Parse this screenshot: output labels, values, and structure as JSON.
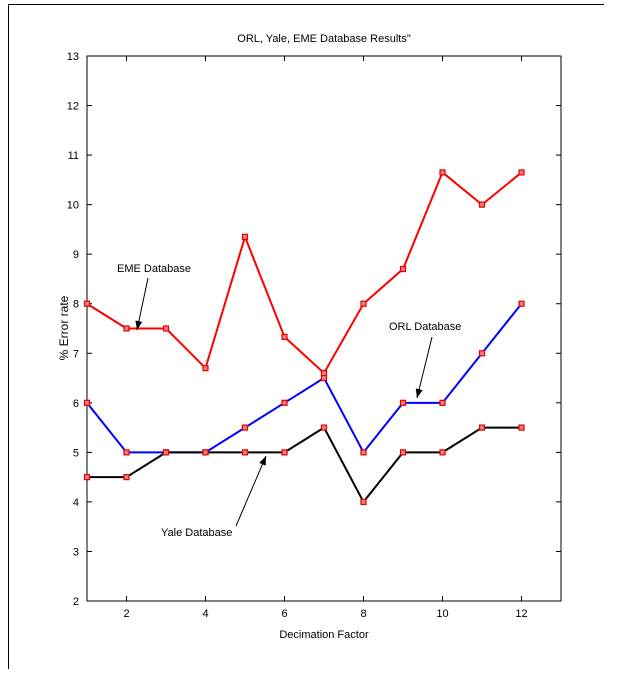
{
  "chart_data": {
    "type": "line",
    "title": "ORL, Yale, EME Database Results\"",
    "xlabel": "Decimation Factor",
    "ylabel": "% Error rate",
    "xlim": [
      1,
      13
    ],
    "ylim": [
      2,
      13
    ],
    "xticks": [
      2,
      4,
      6,
      8,
      10,
      12
    ],
    "yticks": [
      2,
      3,
      4,
      5,
      6,
      7,
      8,
      9,
      10,
      11,
      12,
      13
    ],
    "grid": false,
    "x": [
      1,
      2,
      3,
      4,
      5,
      6,
      7,
      8,
      9,
      10,
      11,
      12
    ],
    "series": [
      {
        "name": "EME Database",
        "color": "#ff0000",
        "values": [
          8.0,
          7.5,
          7.5,
          6.7,
          9.35,
          7.33,
          6.6,
          8.0,
          8.7,
          10.65,
          10.0,
          10.65
        ]
      },
      {
        "name": "ORL Database",
        "color": "#0000ff",
        "values": [
          6.0,
          5.0,
          5.0,
          5.0,
          5.5,
          6.0,
          6.5,
          5.0,
          6.0,
          6.0,
          7.0,
          8.0
        ]
      },
      {
        "name": "Yale Database",
        "color": "#000000",
        "values": [
          4.5,
          4.5,
          5.0,
          5.0,
          5.0,
          5.0,
          5.5,
          4.0,
          5.0,
          5.0,
          5.5,
          5.5
        ]
      }
    ],
    "annotations": [
      {
        "text": "EME Database",
        "series": 0,
        "x": 2.3
      },
      {
        "text": "ORL Database",
        "series": 1,
        "x": 9.3
      },
      {
        "text": "Yale Database",
        "series": 2,
        "x": 6.5
      }
    ],
    "marker_color": "#e00000"
  }
}
